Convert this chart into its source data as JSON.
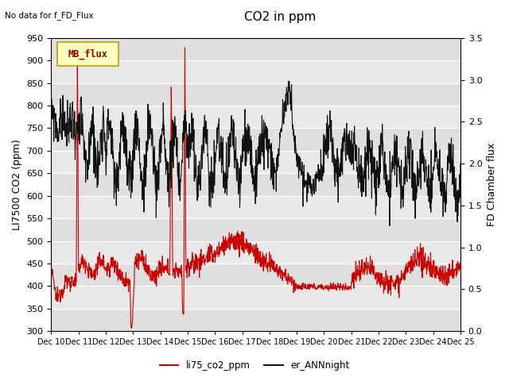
{
  "title": "CO2 in ppm",
  "no_data_text": "No data for f_FD_Flux",
  "mb_flux_label": "MB_flux",
  "ylabel_left": "LI7500 CO2 (ppm)",
  "ylabel_right": "FD Chamber flux",
  "ylim_left": [
    300,
    950
  ],
  "ylim_right": [
    0.0,
    3.5
  ],
  "yticks_left": [
    300,
    350,
    400,
    450,
    500,
    550,
    600,
    650,
    700,
    750,
    800,
    850,
    900,
    950
  ],
  "yticks_right": [
    0.0,
    0.5,
    1.0,
    1.5,
    2.0,
    2.5,
    3.0,
    3.5
  ],
  "xticklabels": [
    "Dec 10",
    "Dec 11",
    "Dec 12",
    "Dec 13",
    "Dec 14",
    "Dec 15",
    "Dec 16",
    "Dec 17",
    "Dec 18",
    "Dec 19",
    "Dec 20",
    "Dec 21",
    "Dec 22",
    "Dec 23",
    "Dec 24",
    "Dec 25"
  ],
  "legend_entries": [
    "li75_co2_ppm",
    "er_ANNnight"
  ],
  "red_color": "#cc0000",
  "black_color": "#111111",
  "bg_color": "#e8e8e8",
  "title_fontsize": 11,
  "axis_fontsize": 9,
  "tick_fontsize": 8
}
